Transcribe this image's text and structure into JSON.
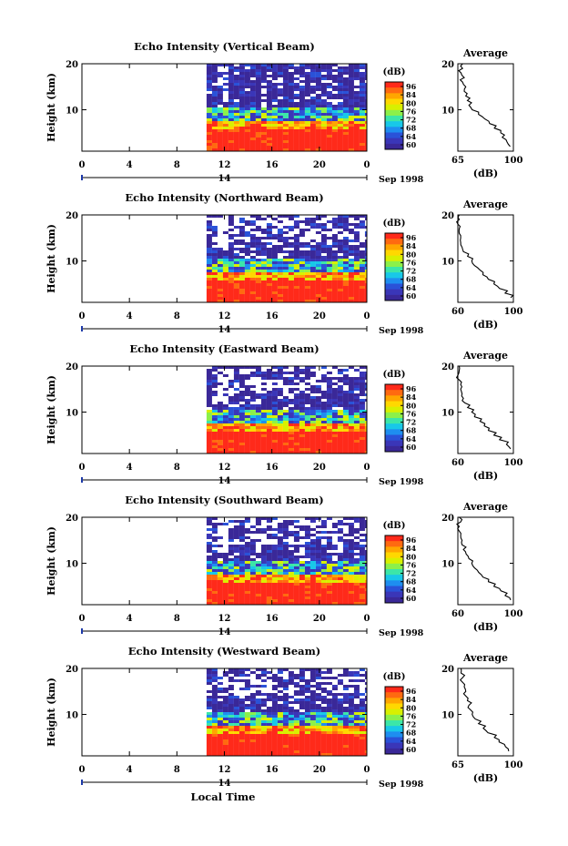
{
  "global": {
    "xlabel": "Local Time",
    "date_label": "Sep 1998",
    "day_label": "14",
    "x_ticks": [
      "0",
      "4",
      "8",
      "12",
      "16",
      "20",
      "0"
    ],
    "colorbar_unit": "(dB)",
    "colorbar_ticks": [
      "96",
      "84",
      "80",
      "76",
      "72",
      "68",
      "64",
      "60"
    ],
    "colorbar_colors": [
      "#ff2a1a",
      "#ff6a10",
      "#ffa600",
      "#ffd800",
      "#d8f000",
      "#8cf04a",
      "#3ce6a8",
      "#18c8e8",
      "#1e8ef0",
      "#2a52d8",
      "#3a36b8",
      "#3a2898"
    ],
    "height_label": "Height (km)",
    "height_ticks": [
      "20",
      "10"
    ],
    "average_title": "Average",
    "average_xlabel": "(dB)"
  },
  "chart_data": [
    {
      "type": "heatmap",
      "title": "Echo Intensity (Vertical Beam)",
      "xlim": [
        0,
        24
      ],
      "ylim": [
        1,
        20
      ],
      "data_start_hour": 10.5,
      "profile": {
        "type": "line",
        "title": "Average",
        "xlim": [
          65,
          100
        ],
        "x_ticks": [
          "65",
          "100"
        ],
        "heights": [
          2,
          3,
          4,
          5,
          6,
          7,
          8,
          9,
          10,
          11,
          12,
          13,
          14,
          15,
          16,
          17,
          18,
          19,
          20
        ],
        "values": [
          98,
          96,
          93,
          92,
          88,
          85,
          82,
          78,
          74,
          72,
          71,
          70,
          69,
          70,
          68,
          69,
          67,
          68,
          68
        ]
      }
    },
    {
      "type": "heatmap",
      "title": "Echo Intensity (Northward Beam)",
      "xlim": [
        0,
        24
      ],
      "ylim": [
        1,
        20
      ],
      "data_start_hour": 10.5,
      "profile": {
        "type": "line",
        "title": "Average",
        "xlim": [
          60,
          100
        ],
        "x_ticks": [
          "60",
          "100"
        ],
        "heights": [
          2,
          3,
          4,
          5,
          6,
          7,
          8,
          9,
          10,
          11,
          12,
          13,
          14,
          15,
          16,
          17,
          18,
          19,
          20
        ],
        "values": [
          98,
          94,
          90,
          86,
          82,
          78,
          76,
          72,
          70,
          67,
          64,
          63,
          62,
          62,
          61,
          61,
          60,
          61,
          61
        ]
      }
    },
    {
      "type": "heatmap",
      "title": "Echo Intensity (Eastward Beam)",
      "xlim": [
        0,
        24
      ],
      "ylim": [
        1,
        20
      ],
      "data_start_hour": 10.5,
      "profile": {
        "type": "line",
        "title": "Average",
        "xlim": [
          60,
          100
        ],
        "x_ticks": [
          "60",
          "100"
        ],
        "heights": [
          2,
          3,
          4,
          5,
          6,
          7,
          8,
          9,
          10,
          11,
          12,
          13,
          14,
          15,
          16,
          17,
          18,
          19,
          20
        ],
        "values": [
          98,
          95,
          90,
          86,
          82,
          79,
          76,
          72,
          70,
          67,
          65,
          64,
          63,
          62,
          62,
          61,
          60,
          61,
          61
        ]
      }
    },
    {
      "type": "heatmap",
      "title": "Echo Intensity (Southward Beam)",
      "xlim": [
        0,
        24
      ],
      "ylim": [
        1,
        20
      ],
      "data_start_hour": 10.5,
      "profile": {
        "type": "line",
        "title": "Average",
        "xlim": [
          60,
          100
        ],
        "x_ticks": [
          "60",
          "100"
        ],
        "heights": [
          2,
          3,
          4,
          5,
          6,
          7,
          8,
          9,
          10,
          11,
          12,
          13,
          14,
          15,
          16,
          17,
          18,
          19,
          20
        ],
        "values": [
          98,
          94,
          91,
          86,
          82,
          78,
          75,
          72,
          70,
          68,
          66,
          64,
          63,
          63,
          62,
          61,
          61,
          62,
          61
        ]
      }
    },
    {
      "type": "heatmap",
      "title": "Echo Intensity (Westward Beam)",
      "xlim": [
        0,
        24
      ],
      "ylim": [
        1,
        20
      ],
      "data_start_hour": 10.5,
      "profile": {
        "type": "line",
        "title": "Average",
        "xlim": [
          65,
          100
        ],
        "x_ticks": [
          "65",
          "100"
        ],
        "heights": [
          2,
          3,
          4,
          5,
          6,
          7,
          8,
          9,
          10,
          11,
          12,
          13,
          14,
          15,
          16,
          17,
          18,
          19,
          20
        ],
        "values": [
          97,
          95,
          91,
          88,
          84,
          81,
          78,
          76,
          74,
          73,
          72,
          71,
          70,
          70,
          69,
          68,
          68,
          67,
          67
        ]
      }
    }
  ]
}
